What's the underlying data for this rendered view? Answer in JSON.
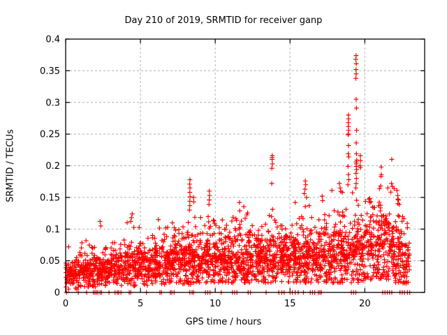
{
  "chart_data": {
    "type": "scatter",
    "title": "Day 210 of 2019, SRMTID for receiver ganp",
    "xlabel": "GPS time / hours",
    "ylabel": "SRMTID / TECUs",
    "xlim": [
      0,
      24
    ],
    "ylim": [
      0,
      0.4
    ],
    "xticks": [
      0,
      5,
      10,
      15,
      20
    ],
    "xtick_labels": [
      "0",
      "5",
      "10",
      "15",
      "20"
    ],
    "yticks": [
      0,
      0.05,
      0.1,
      0.15,
      0.2,
      0.25,
      0.3,
      0.35,
      0.4
    ],
    "ytick_labels": [
      "0",
      "0.05",
      "0.1",
      "0.15",
      "0.2",
      "0.25",
      "0.3",
      "0.35",
      "0.4"
    ],
    "grid": true,
    "legend": "none",
    "marker": "plus",
    "colors": {
      "points": "#ff0000",
      "grid": "#b0b0b0",
      "axis": "#000000",
      "text": "#000000",
      "background": "#ffffff"
    },
    "data_time_range_hours": [
      0,
      23
    ],
    "cloud": {
      "bin_width_hours": 0.5,
      "start_hour": 0,
      "bins_format": [
        "count",
        "base",
        "mode",
        "max"
      ],
      "bins": [
        [
          52,
          0.005,
          0.028,
          0.05
        ],
        [
          55,
          0.005,
          0.03,
          0.066
        ],
        [
          55,
          0.008,
          0.032,
          0.085
        ],
        [
          55,
          0.008,
          0.033,
          0.087
        ],
        [
          55,
          0.008,
          0.03,
          0.075
        ],
        [
          50,
          0.008,
          0.032,
          0.112
        ],
        [
          50,
          0.01,
          0.035,
          0.09
        ],
        [
          50,
          0.01,
          0.035,
          0.085
        ],
        [
          55,
          0.01,
          0.04,
          0.112
        ],
        [
          55,
          0.01,
          0.045,
          0.124
        ],
        [
          55,
          0.01,
          0.04,
          0.1
        ],
        [
          55,
          0.012,
          0.04,
          0.095
        ],
        [
          55,
          0.012,
          0.045,
          0.115
        ],
        [
          55,
          0.012,
          0.045,
          0.105
        ],
        [
          60,
          0.012,
          0.05,
          0.11
        ],
        [
          60,
          0.012,
          0.05,
          0.115
        ],
        [
          60,
          0.012,
          0.05,
          0.13
        ],
        [
          55,
          0.015,
          0.05,
          0.135
        ],
        [
          55,
          0.015,
          0.05,
          0.12
        ],
        [
          55,
          0.015,
          0.05,
          0.13
        ],
        [
          60,
          0.015,
          0.05,
          0.12
        ],
        [
          60,
          0.015,
          0.05,
          0.115
        ],
        [
          60,
          0.015,
          0.05,
          0.125
        ],
        [
          60,
          0.015,
          0.055,
          0.14
        ],
        [
          60,
          0.015,
          0.055,
          0.13
        ],
        [
          60,
          0.015,
          0.05,
          0.11
        ],
        [
          60,
          0.015,
          0.05,
          0.12
        ],
        [
          60,
          0.015,
          0.055,
          0.145
        ],
        [
          60,
          0.015,
          0.055,
          0.13
        ],
        [
          60,
          0.015,
          0.05,
          0.12
        ],
        [
          60,
          0.015,
          0.055,
          0.14
        ],
        [
          60,
          0.015,
          0.055,
          0.13
        ],
        [
          60,
          0.015,
          0.055,
          0.14
        ],
        [
          60,
          0.015,
          0.05,
          0.12
        ],
        [
          60,
          0.015,
          0.055,
          0.155
        ],
        [
          60,
          0.015,
          0.055,
          0.14
        ],
        [
          60,
          0.015,
          0.06,
          0.16
        ],
        [
          60,
          0.015,
          0.06,
          0.165
        ],
        [
          55,
          0.015,
          0.06,
          0.17
        ],
        [
          55,
          0.015,
          0.065,
          0.17
        ],
        [
          60,
          0.02,
          0.07,
          0.15
        ],
        [
          60,
          0.02,
          0.075,
          0.16
        ],
        [
          60,
          0.02,
          0.075,
          0.165
        ],
        [
          60,
          0.02,
          0.07,
          0.17
        ],
        [
          60,
          0.015,
          0.06,
          0.155
        ],
        [
          52,
          0.01,
          0.05,
          0.145
        ]
      ]
    },
    "outliers": [
      [
        0.2,
        0.072
      ],
      [
        2.3,
        0.112
      ],
      [
        2.35,
        0.105
      ],
      [
        4.45,
        0.124
      ],
      [
        4.4,
        0.118
      ],
      [
        4.35,
        0.112
      ],
      [
        6.2,
        0.115
      ],
      [
        8.28,
        0.13
      ],
      [
        8.3,
        0.137
      ],
      [
        8.3,
        0.144
      ],
      [
        8.32,
        0.151
      ],
      [
        8.3,
        0.158
      ],
      [
        8.31,
        0.165
      ],
      [
        8.29,
        0.171
      ],
      [
        8.31,
        0.178
      ],
      [
        8.55,
        0.15
      ],
      [
        8.57,
        0.143
      ],
      [
        9.58,
        0.139
      ],
      [
        9.6,
        0.146
      ],
      [
        9.62,
        0.153
      ],
      [
        9.6,
        0.16
      ],
      [
        11.62,
        0.142
      ],
      [
        13.78,
        0.172
      ],
      [
        13.79,
        0.196
      ],
      [
        13.82,
        0.203
      ],
      [
        13.8,
        0.21
      ],
      [
        13.81,
        0.216
      ],
      [
        13.8,
        0.213
      ],
      [
        15.35,
        0.142
      ],
      [
        15.95,
        0.156
      ],
      [
        16.0,
        0.163
      ],
      [
        16.05,
        0.17
      ],
      [
        16.02,
        0.176
      ],
      [
        16.1,
        0.15
      ],
      [
        17.15,
        0.152
      ],
      [
        17.18,
        0.145
      ],
      [
        17.8,
        0.161
      ],
      [
        18.3,
        0.172
      ],
      [
        18.35,
        0.165
      ],
      [
        18.5,
        0.158
      ],
      [
        18.88,
        0.249
      ],
      [
        18.9,
        0.25
      ],
      [
        18.92,
        0.256
      ],
      [
        18.9,
        0.262
      ],
      [
        18.89,
        0.268
      ],
      [
        18.91,
        0.274
      ],
      [
        18.9,
        0.28
      ],
      [
        18.91,
        0.232
      ],
      [
        18.89,
        0.219
      ],
      [
        18.92,
        0.214
      ],
      [
        18.88,
        0.199
      ],
      [
        18.9,
        0.186
      ],
      [
        18.93,
        0.178
      ],
      [
        18.87,
        0.17
      ],
      [
        19.42,
        0.374
      ],
      [
        19.4,
        0.368
      ],
      [
        19.43,
        0.361
      ],
      [
        19.41,
        0.352
      ],
      [
        19.42,
        0.345
      ],
      [
        19.4,
        0.338
      ],
      [
        19.42,
        0.305
      ],
      [
        19.44,
        0.291
      ],
      [
        19.45,
        0.256
      ],
      [
        19.43,
        0.236
      ],
      [
        19.44,
        0.219
      ],
      [
        19.46,
        0.209
      ],
      [
        19.42,
        0.206
      ],
      [
        19.44,
        0.203
      ],
      [
        19.43,
        0.199
      ],
      [
        19.45,
        0.194
      ],
      [
        19.41,
        0.188
      ],
      [
        19.44,
        0.18
      ],
      [
        19.42,
        0.172
      ],
      [
        19.4,
        0.165
      ],
      [
        19.7,
        0.216
      ],
      [
        19.72,
        0.208
      ],
      [
        19.68,
        0.2
      ],
      [
        19.71,
        0.197
      ],
      [
        20.98,
        0.164
      ],
      [
        21.06,
        0.168
      ],
      [
        21.08,
        0.183
      ],
      [
        21.1,
        0.186
      ],
      [
        21.1,
        0.198
      ],
      [
        21.8,
        0.21
      ],
      [
        21.78,
        0.172
      ],
      [
        21.85,
        0.167
      ],
      [
        22.15,
        0.161
      ],
      [
        22.2,
        0.153
      ],
      [
        22.25,
        0.146
      ],
      [
        22.3,
        0.139
      ]
    ],
    "zeros_x": [
      0.05,
      0.85,
      1.4,
      1.85,
      1.95,
      2.05,
      2.15,
      2.3,
      2.4,
      2.9,
      3.3,
      3.45,
      3.55,
      3.7,
      4.25,
      4.35,
      5.4,
      6.3,
      6.4,
      7.0,
      7.1,
      7.25,
      8.3,
      8.45,
      8.55,
      9.35,
      9.5,
      9.65,
      10.4,
      11.15,
      11.3,
      11.45,
      12.2,
      12.35,
      13.4,
      14.25,
      14.45,
      14.6,
      15.0,
      15.15,
      15.35,
      15.55,
      15.9,
      16.35,
      16.5,
      16.65,
      16.9,
      17.0,
      17.1,
      19.1,
      19.25,
      19.4,
      21.2,
      21.35,
      21.5,
      21.65,
      21.8,
      22.35,
      22.5,
      22.65,
      22.85,
      23.0
    ]
  }
}
